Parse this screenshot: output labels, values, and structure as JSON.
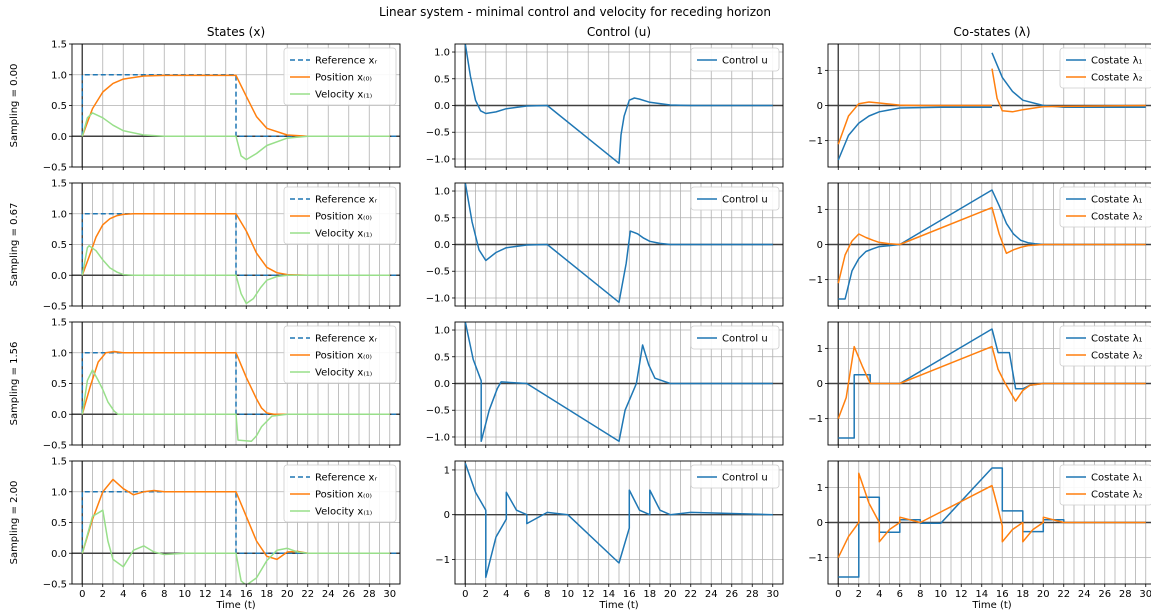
{
  "title": "Linear system - minimal control and velocity for receding horizon",
  "columns": [
    {
      "key": "states",
      "title": "States (x)"
    },
    {
      "key": "control",
      "title": "Control (u)"
    },
    {
      "key": "costates",
      "title": "Co-states (λ)"
    }
  ],
  "rows": [
    {
      "label": "Sampling = 0.00",
      "sampling": 0.0
    },
    {
      "label": "Sampling = 0.67",
      "sampling": 0.67
    },
    {
      "label": "Sampling = 1.56",
      "sampling": 1.56
    },
    {
      "label": "Sampling = 2.00",
      "sampling": 2.0
    }
  ],
  "x_axis": {
    "label": "Time (t)",
    "ticks": [
      "0",
      "2",
      "4",
      "6",
      "8",
      "10",
      "12",
      "14",
      "16",
      "18",
      "20",
      "22",
      "24",
      "26",
      "28",
      "30"
    ],
    "xlim": [
      -1,
      31
    ]
  },
  "legends": {
    "states": [
      "Reference xᵣ",
      "Position x₍₀₎",
      "Velocity x₍₁₎"
    ],
    "control": [
      "Control u"
    ],
    "costates": [
      "Costate λ₁",
      "Costate λ₂"
    ]
  },
  "colors": {
    "reference": "#1f77b4",
    "position": "#ff7f0e",
    "velocity": "#98df8a",
    "control": "#1f77b4",
    "costate1": "#1f77b4",
    "costate2": "#ff7f0e",
    "grid": "#b0b0b0",
    "axis": "#404040"
  },
  "chart_data": [
    {
      "type": "line",
      "panel": "states",
      "ylim": [
        -0.5,
        1.5
      ],
      "yticks": [
        "−0.5",
        "0.0",
        "0.5",
        "1.0",
        "1.5"
      ],
      "series": [
        {
          "name": "Reference xᵣ",
          "x": [
            0,
            0,
            15,
            15,
            31
          ],
          "y": [
            0,
            1,
            1,
            0,
            0
          ]
        },
        {
          "name": "Position x₍₀₎",
          "x": [
            0,
            1,
            2,
            3,
            4,
            6,
            8,
            15,
            16,
            17,
            18,
            20,
            22,
            30
          ],
          "y": [
            0,
            0.45,
            0.72,
            0.86,
            0.93,
            0.98,
            0.99,
            0.99,
            0.65,
            0.32,
            0.13,
            0.02,
            0.0,
            0.0
          ]
        },
        {
          "name": "Velocity x₍₁₎",
          "x": [
            0,
            0.5,
            1,
            2,
            3,
            4,
            6,
            8,
            15,
            15.5,
            16,
            17,
            18,
            20,
            22,
            30
          ],
          "y": [
            0,
            0.3,
            0.38,
            0.3,
            0.18,
            0.09,
            0.02,
            0.0,
            0.0,
            -0.32,
            -0.38,
            -0.28,
            -0.15,
            -0.03,
            0.0,
            0.0
          ]
        }
      ]
    },
    {
      "type": "line",
      "panel": "control",
      "ylim": [
        -1.15,
        1.15
      ],
      "yticks": [
        "−1.0",
        "−0.5",
        "0.0",
        "0.5",
        "1.0"
      ],
      "series": [
        {
          "name": "Control u",
          "x": [
            0,
            0.5,
            1,
            1.5,
            2,
            3,
            4,
            6,
            8,
            15,
            15.2,
            15.5,
            16,
            16.5,
            17,
            18,
            20,
            22,
            30
          ],
          "y": [
            1.15,
            0.55,
            0.1,
            -0.1,
            -0.15,
            -0.12,
            -0.06,
            -0.01,
            0.0,
            -1.08,
            -0.55,
            -0.2,
            0.1,
            0.14,
            0.12,
            0.06,
            0.01,
            0.0,
            0.0
          ]
        }
      ]
    },
    {
      "type": "line",
      "panel": "costates",
      "ylim": [
        -1.75,
        1.75
      ],
      "yticks": [
        "−1",
        "0",
        "1"
      ],
      "series": [
        {
          "name": "Costate λ₁",
          "x": [
            0,
            1,
            2,
            3,
            4,
            6,
            10,
            15,
            null,
            15,
            16,
            17,
            18,
            20,
            22,
            30
          ],
          "y": [
            -1.55,
            -0.85,
            -0.5,
            -0.3,
            -0.18,
            -0.07,
            -0.05,
            -0.05,
            null,
            1.5,
            0.8,
            0.4,
            0.15,
            0.0,
            -0.05,
            -0.05
          ]
        },
        {
          "name": "Costate λ₂",
          "x": [
            0,
            1,
            2,
            3,
            4,
            6,
            8,
            15,
            null,
            15,
            15.5,
            16,
            17,
            18,
            20,
            30
          ],
          "y": [
            -1.1,
            -0.3,
            0.05,
            0.1,
            0.07,
            0.01,
            0.0,
            0.0,
            null,
            1.05,
            0.2,
            -0.15,
            -0.18,
            -0.12,
            -0.03,
            0.0
          ]
        }
      ]
    },
    {
      "type": "line",
      "panel": "states",
      "ylim": [
        -0.5,
        1.5
      ],
      "yticks": [
        "−0.5",
        "0.0",
        "0.5",
        "1.0",
        "1.5"
      ],
      "series": [
        {
          "name": "Reference xᵣ",
          "x": [
            0,
            0,
            15,
            15,
            31
          ],
          "y": [
            0,
            1,
            1,
            0,
            0
          ]
        },
        {
          "name": "Position x₍₀₎",
          "x": [
            0,
            0.67,
            1.34,
            2.0,
            2.7,
            3.4,
            4.0,
            5,
            6,
            15,
            16,
            17,
            18,
            19,
            20,
            22,
            30
          ],
          "y": [
            0,
            0.3,
            0.62,
            0.82,
            0.92,
            0.97,
            0.99,
            1.0,
            1.0,
            1.0,
            0.72,
            0.36,
            0.13,
            0.04,
            0.01,
            0.0,
            0.0
          ]
        },
        {
          "name": "Velocity x₍₁₎",
          "x": [
            0,
            0.5,
            0.67,
            1.34,
            2.0,
            2.7,
            3.4,
            4.0,
            5,
            6,
            15,
            15.5,
            16,
            16.7,
            17.4,
            18,
            19,
            20,
            22,
            30
          ],
          "y": [
            0,
            0.45,
            0.48,
            0.4,
            0.25,
            0.12,
            0.05,
            0.01,
            0.0,
            0.0,
            0.0,
            -0.3,
            -0.46,
            -0.38,
            -0.2,
            -0.08,
            -0.02,
            0.0,
            0.0,
            0.0
          ]
        }
      ]
    },
    {
      "type": "line",
      "panel": "control",
      "ylim": [
        -1.15,
        1.15
      ],
      "yticks": [
        "−1.0",
        "−0.5",
        "0.0",
        "0.5",
        "1.0"
      ],
      "series": [
        {
          "name": "Control u",
          "x": [
            0,
            0.67,
            1.34,
            2.0,
            3,
            4,
            6,
            8,
            15,
            15.7,
            16.1,
            16.8,
            17.4,
            18,
            19,
            20,
            22,
            30
          ],
          "y": [
            1.15,
            0.42,
            -0.1,
            -0.3,
            -0.15,
            -0.06,
            -0.01,
            0.0,
            -1.08,
            -0.35,
            0.25,
            0.2,
            0.12,
            0.06,
            0.02,
            0.0,
            0.0,
            0.0
          ]
        }
      ]
    },
    {
      "type": "line",
      "panel": "costates",
      "ylim": [
        -1.75,
        1.75
      ],
      "yticks": [
        "−1",
        "0",
        "1"
      ],
      "series": [
        {
          "name": "Costate λ₁",
          "x": [
            0,
            0.67,
            1.34,
            2.0,
            2.7,
            3.4,
            4.0,
            5,
            6,
            15,
            15.7,
            16.4,
            17.1,
            17.8,
            18.5,
            19.2,
            20,
            22,
            30
          ],
          "y": [
            -1.55,
            -1.55,
            -0.75,
            -0.4,
            -0.2,
            -0.12,
            -0.06,
            -0.03,
            0.0,
            1.55,
            1.1,
            0.6,
            0.3,
            0.12,
            0.05,
            0.02,
            0.0,
            0.0,
            0.0
          ]
        },
        {
          "name": "Costate λ₂",
          "x": [
            0,
            0.67,
            1.34,
            2.0,
            2.7,
            3.4,
            4.0,
            5,
            6,
            15,
            15.7,
            16.4,
            17.1,
            17.8,
            18.5,
            20,
            30
          ],
          "y": [
            -1.1,
            -0.3,
            0.1,
            0.3,
            0.2,
            0.12,
            0.06,
            0.02,
            0.0,
            1.05,
            0.3,
            -0.25,
            -0.15,
            -0.08,
            -0.03,
            0.0,
            0.0
          ]
        }
      ]
    },
    {
      "type": "line",
      "panel": "states",
      "ylim": [
        -0.5,
        1.5
      ],
      "yticks": [
        "−0.5",
        "0.0",
        "0.5",
        "1.0",
        "1.5"
      ],
      "series": [
        {
          "name": "Reference xᵣ",
          "x": [
            0,
            0,
            15,
            15,
            31
          ],
          "y": [
            0,
            1,
            1,
            0,
            0
          ]
        },
        {
          "name": "Position x₍₀₎",
          "x": [
            0,
            0.78,
            1.56,
            2.3,
            3.12,
            4,
            6,
            15,
            16,
            17,
            17.5,
            18,
            18.7,
            20,
            30
          ],
          "y": [
            0,
            0.45,
            0.85,
            1.0,
            1.02,
            1.0,
            1.0,
            1.0,
            0.6,
            0.25,
            0.1,
            0.02,
            0.0,
            0.0,
            0.0
          ]
        },
        {
          "name": "Velocity x₍₁₎",
          "x": [
            0,
            0.5,
            1.0,
            1.56,
            2.0,
            2.5,
            3.12,
            3.5,
            4.68,
            6,
            15,
            15.2,
            16.5,
            17.0,
            17.5,
            18.5,
            20,
            30
          ],
          "y": [
            0,
            0.55,
            0.72,
            0.55,
            0.4,
            0.2,
            0.05,
            0.0,
            0.0,
            0.0,
            0.0,
            -0.42,
            -0.44,
            -0.35,
            -0.2,
            -0.03,
            0.0,
            0.0
          ]
        }
      ]
    },
    {
      "type": "line",
      "panel": "control",
      "ylim": [
        -1.15,
        1.15
      ],
      "yticks": [
        "−1.0",
        "−0.5",
        "0.0",
        "0.5",
        "1.0"
      ],
      "series": [
        {
          "name": "Control u",
          "x": [
            0,
            0.78,
            1.56,
            1.56,
            2.34,
            3.12,
            3.5,
            6,
            15,
            15.6,
            16.7,
            17.3,
            17.9,
            18.5,
            20,
            30
          ],
          "y": [
            1.15,
            0.45,
            0.05,
            -1.08,
            -0.5,
            -0.1,
            0.03,
            0.0,
            -1.08,
            -0.5,
            0.0,
            0.72,
            0.35,
            0.1,
            0.0,
            0.0
          ]
        }
      ]
    },
    {
      "type": "line",
      "panel": "costates",
      "ylim": [
        -1.75,
        1.75
      ],
      "yticks": [
        "−1",
        "0",
        "1"
      ],
      "series": [
        {
          "name": "Costate λ₁",
          "x": [
            0,
            1.56,
            1.56,
            3.12,
            3.12,
            6,
            15,
            15.6,
            16.7,
            17.3,
            18.0,
            18.7,
            20,
            30
          ],
          "y": [
            -1.55,
            -1.55,
            0.25,
            0.25,
            0.0,
            0.0,
            1.55,
            0.88,
            0.88,
            -0.15,
            -0.15,
            -0.05,
            0.0,
            0.0
          ]
        },
        {
          "name": "Costate λ₂",
          "x": [
            0,
            0.78,
            1.56,
            2.34,
            3.12,
            6,
            15,
            15.6,
            16.2,
            17.3,
            18.0,
            18.7,
            20,
            30
          ],
          "y": [
            -1.0,
            -0.4,
            1.05,
            0.5,
            0.0,
            0.0,
            1.05,
            0.4,
            0.05,
            -0.5,
            -0.2,
            -0.05,
            0.0,
            0.0
          ]
        }
      ]
    },
    {
      "type": "line",
      "panel": "states",
      "ylim": [
        -0.5,
        1.5
      ],
      "yticks": [
        "−0.5",
        "0.0",
        "0.5",
        "1.0",
        "1.5"
      ],
      "series": [
        {
          "name": "Reference xᵣ",
          "x": [
            0,
            0,
            15,
            15,
            31
          ],
          "y": [
            0,
            1,
            1,
            0,
            0
          ]
        },
        {
          "name": "Position x₍₀₎",
          "x": [
            0,
            1,
            2,
            3,
            4,
            5,
            6,
            7,
            8,
            10,
            15,
            16,
            17,
            18,
            19,
            20,
            21,
            22,
            30
          ],
          "y": [
            0,
            0.55,
            1.0,
            1.2,
            1.05,
            0.95,
            1.0,
            1.02,
            1.0,
            1.0,
            1.0,
            0.6,
            0.2,
            -0.05,
            -0.1,
            0.02,
            0.03,
            0.0,
            0.0
          ]
        },
        {
          "name": "Velocity x₍₁₎",
          "x": [
            0,
            1,
            2,
            2.5,
            3,
            4,
            5,
            6,
            7,
            8,
            10,
            15,
            15.5,
            16,
            17,
            18,
            19,
            20,
            21,
            22,
            30
          ],
          "y": [
            0,
            0.6,
            0.7,
            0.2,
            -0.1,
            -0.22,
            0.05,
            0.12,
            0.02,
            -0.02,
            0.0,
            0.0,
            -0.45,
            -0.52,
            -0.4,
            -0.12,
            0.05,
            0.08,
            0.02,
            0.0,
            0.0
          ]
        }
      ]
    },
    {
      "type": "line",
      "panel": "control",
      "ylim": [
        -1.55,
        1.2
      ],
      "yticks": [
        "−1",
        "0",
        "1"
      ],
      "series": [
        {
          "name": "Control u",
          "x": [
            0,
            1,
            2,
            2,
            3,
            4,
            4,
            5,
            6,
            6,
            8,
            10,
            15,
            16,
            16,
            17,
            18,
            18,
            19,
            20,
            22,
            30
          ],
          "y": [
            1.15,
            0.5,
            0.1,
            -1.4,
            -0.5,
            -0.1,
            0.5,
            0.1,
            0.0,
            -0.2,
            0.05,
            0.0,
            -1.08,
            -0.3,
            0.55,
            0.1,
            0.0,
            0.55,
            0.1,
            0.0,
            0.05,
            0.0
          ]
        }
      ]
    },
    {
      "type": "line",
      "panel": "costates",
      "ylim": [
        -1.75,
        1.75
      ],
      "yticks": [
        "−1",
        "0",
        "1"
      ],
      "series": [
        {
          "name": "Costate λ₁",
          "x": [
            0,
            2,
            2,
            4,
            4,
            6,
            6,
            8,
            8,
            10,
            15,
            16,
            16,
            18,
            18,
            20,
            20,
            22,
            22,
            30
          ],
          "y": [
            -1.55,
            -1.55,
            0.72,
            0.72,
            -0.28,
            -0.28,
            0.08,
            0.08,
            -0.02,
            -0.02,
            1.55,
            1.55,
            0.33,
            0.33,
            -0.26,
            -0.26,
            0.08,
            0.08,
            0.0,
            0.0
          ]
        },
        {
          "name": "Costate λ₂",
          "x": [
            0,
            1,
            2,
            2,
            3,
            4,
            4,
            5,
            6,
            6,
            8,
            15,
            15.5,
            16,
            16,
            17,
            18,
            18,
            19,
            20,
            20,
            22,
            30
          ],
          "y": [
            -1.0,
            -0.4,
            0.0,
            1.4,
            0.55,
            0.0,
            -0.55,
            -0.2,
            0.0,
            0.15,
            0.0,
            1.05,
            0.5,
            -0.1,
            -0.55,
            -0.2,
            0.0,
            -0.55,
            -0.2,
            0.0,
            0.15,
            0.0,
            0.0
          ]
        }
      ]
    }
  ]
}
